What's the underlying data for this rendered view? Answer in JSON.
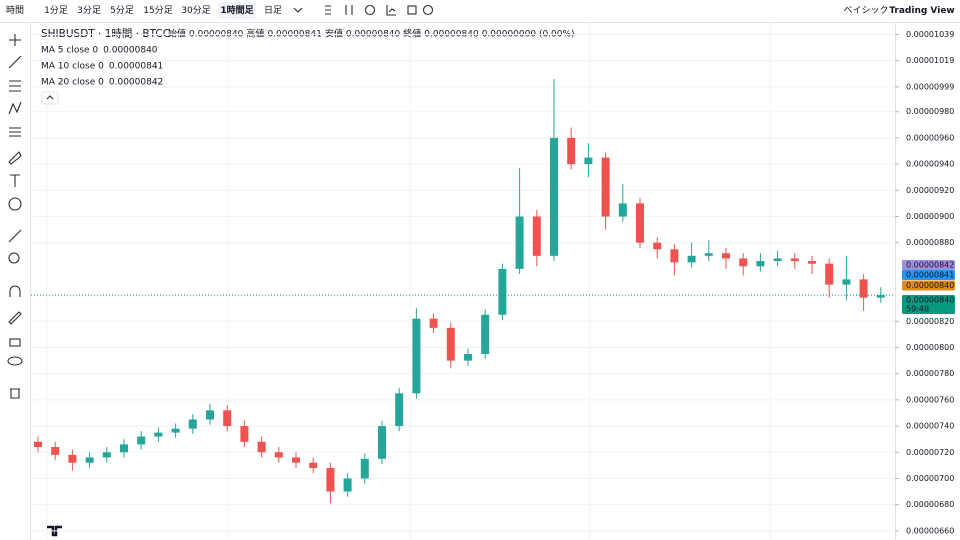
{
  "toolbar": {
    "items": [
      "時間",
      "1分足",
      "3分足",
      "5分足",
      "15分足",
      "30分足",
      "1時間足",
      "日足"
    ],
    "active": "1時間足",
    "right": [
      "ベイシック",
      "Trading View"
    ]
  },
  "legend": {
    "symbol": "SHIBUSDT · 1時間 · BTCC",
    "open_label": "始値",
    "open": "0.00000840",
    "high_label": "高値",
    "high": "0.00000841",
    "low_label": "安値",
    "low": "0.00000840",
    "close_label": "終値",
    "close": "0.00000840",
    "change": "0.00000000 (0.00%)",
    "ma": [
      {
        "label": "MA 5 close 0",
        "value": "0.00000840",
        "color": "#e9a23b"
      },
      {
        "label": "MA 10 close 0",
        "value": "0.00000841",
        "color": "#2196f3"
      },
      {
        "label": "MA 20 close 0",
        "value": "0.00000842",
        "color": "#b39ddb"
      }
    ]
  },
  "price_labels": [
    {
      "text": "0.00000842",
      "color": "#9c8fe0"
    },
    {
      "text": "0.00000841",
      "color": "#2196f3"
    },
    {
      "text": "0.00000840",
      "color": "#e08a1e"
    },
    {
      "text": "0.00000840",
      "sub": "59:48",
      "color": "#089981"
    }
  ],
  "chart_data": {
    "type": "candlestick",
    "up_color": "#26a69a",
    "down_color": "#ef5350",
    "ylim": [
      6.53e-06,
      1.047e-05
    ],
    "yticks": [
      {
        "value": 1.039e-05,
        "label": "0.00001039"
      },
      {
        "value": 1.019e-05,
        "label": "0.00001019"
      },
      {
        "value": 9.99e-06,
        "label": "0.00000999"
      },
      {
        "value": 9.8e-06,
        "label": "0.00000980"
      },
      {
        "value": 9.6e-06,
        "label": "0.00000960"
      },
      {
        "value": 9.4e-06,
        "label": "0.00000940"
      },
      {
        "value": 9.2e-06,
        "label": "0.00000920"
      },
      {
        "value": 9e-06,
        "label": "0.00000900"
      },
      {
        "value": 8.8e-06,
        "label": "0.00000880"
      },
      {
        "value": 8.2e-06,
        "label": "0.00000820"
      },
      {
        "value": 8e-06,
        "label": "0.00000800"
      },
      {
        "value": 7.8e-06,
        "label": "0.00000780"
      },
      {
        "value": 7.6e-06,
        "label": "0.00000760"
      },
      {
        "value": 7.4e-06,
        "label": "0.00000740"
      },
      {
        "value": 7.2e-06,
        "label": "0.00000720"
      },
      {
        "value": 7e-06,
        "label": "0.00000700"
      },
      {
        "value": 6.8e-06,
        "label": "0.00000680"
      },
      {
        "value": 6.6e-06,
        "label": "0.00000660"
      }
    ],
    "last_price": 8.4e-06,
    "open": [
      7.28e-06,
      7.24e-06,
      7.18e-06,
      7.12e-06,
      7.16e-06,
      7.2e-06,
      7.26e-06,
      7.32e-06,
      7.35e-06,
      7.38e-06,
      7.45e-06,
      7.52e-06,
      7.4e-06,
      7.28e-06,
      7.2e-06,
      7.16e-06,
      7.12e-06,
      7.08e-06,
      6.9e-06,
      7e-06,
      7.15e-06,
      7.4e-06,
      7.65e-06,
      8.22e-06,
      8.15e-06,
      7.9e-06,
      7.95e-06,
      8.25e-06,
      8.6e-06,
      9e-06,
      8.7e-06,
      9.6e-06,
      9.4e-06,
      9.45e-06,
      9e-06,
      9.1e-06,
      8.8e-06,
      8.75e-06,
      8.65e-06,
      8.7e-06,
      8.72e-06,
      8.68e-06,
      8.62e-06,
      8.66e-06,
      8.68e-06,
      8.66e-06,
      8.64e-06,
      8.48e-06,
      8.52e-06,
      8.38e-06
    ],
    "high": [
      7.32e-06,
      7.28e-06,
      7.22e-06,
      7.2e-06,
      7.24e-06,
      7.3e-06,
      7.36e-06,
      7.39e-06,
      7.42e-06,
      7.49e-06,
      7.57e-06,
      7.56e-06,
      7.44e-06,
      7.32e-06,
      7.24e-06,
      7.2e-06,
      7.16e-06,
      7.12e-06,
      7.04e-06,
      7.19e-06,
      7.44e-06,
      7.69e-06,
      8.3e-06,
      8.26e-06,
      8.19e-06,
      7.99e-06,
      8.29e-06,
      8.64e-06,
      9.37e-06,
      9.05e-06,
      1.005e-05,
      9.68e-06,
      9.56e-06,
      9.49e-06,
      9.25e-06,
      9.14e-06,
      8.84e-06,
      8.79e-06,
      8.8e-06,
      8.82e-06,
      8.76e-06,
      8.72e-06,
      8.72e-06,
      8.74e-06,
      8.72e-06,
      8.7e-06,
      8.68e-06,
      8.7e-06,
      8.56e-06,
      8.46e-06
    ],
    "low": [
      7.2e-06,
      7.14e-06,
      7.06e-06,
      7.08e-06,
      7.12e-06,
      7.16e-06,
      7.22e-06,
      7.28e-06,
      7.31e-06,
      7.34e-06,
      7.41e-06,
      7.36e-06,
      7.24e-06,
      7.16e-06,
      7.12e-06,
      7.08e-06,
      7.04e-06,
      6.81e-06,
      6.86e-06,
      6.96e-06,
      7.11e-06,
      7.36e-06,
      7.61e-06,
      8.11e-06,
      7.84e-06,
      7.86e-06,
      7.91e-06,
      8.21e-06,
      8.56e-06,
      8.62e-06,
      8.66e-06,
      9.36e-06,
      9.3e-06,
      8.9e-06,
      8.96e-06,
      8.76e-06,
      8.68e-06,
      8.55e-06,
      8.61e-06,
      8.66e-06,
      8.6e-06,
      8.55e-06,
      8.58e-06,
      8.62e-06,
      8.6e-06,
      8.56e-06,
      8.38e-06,
      8.36e-06,
      8.28e-06,
      8.34e-06
    ],
    "close": [
      7.24e-06,
      7.18e-06,
      7.12e-06,
      7.16e-06,
      7.2e-06,
      7.26e-06,
      7.32e-06,
      7.35e-06,
      7.38e-06,
      7.45e-06,
      7.52e-06,
      7.4e-06,
      7.28e-06,
      7.2e-06,
      7.16e-06,
      7.12e-06,
      7.08e-06,
      6.9e-06,
      7e-06,
      7.15e-06,
      7.4e-06,
      7.65e-06,
      8.22e-06,
      8.15e-06,
      7.9e-06,
      7.95e-06,
      8.25e-06,
      8.6e-06,
      9e-06,
      8.7e-06,
      9.6e-06,
      9.4e-06,
      9.45e-06,
      9e-06,
      9.1e-06,
      8.8e-06,
      8.75e-06,
      8.65e-06,
      8.7e-06,
      8.72e-06,
      8.68e-06,
      8.62e-06,
      8.66e-06,
      8.68e-06,
      8.66e-06,
      8.64e-06,
      8.48e-06,
      8.52e-06,
      8.38e-06,
      8.4e-06
    ]
  }
}
